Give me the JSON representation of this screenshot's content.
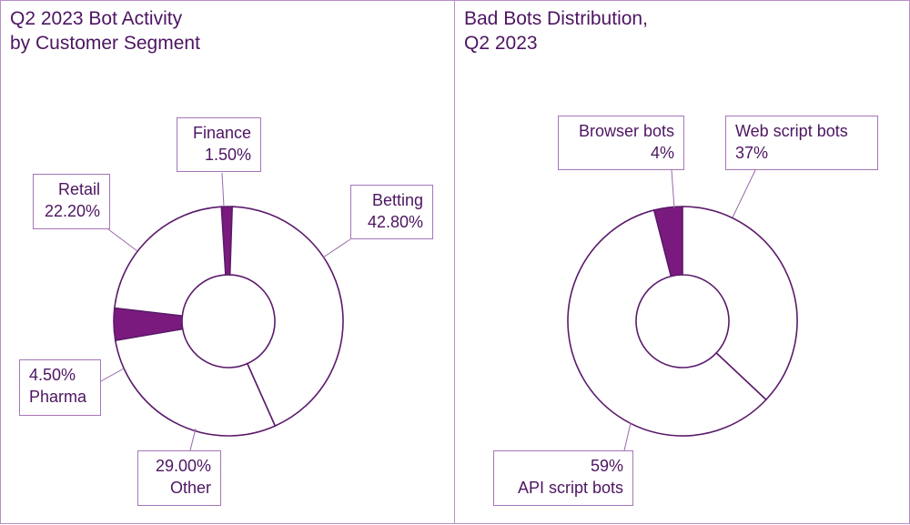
{
  "colors": {
    "accent": "#7b1a7e",
    "outline": "#5b1a6b",
    "text": "#4d1561",
    "border": "#b88fc7"
  },
  "charts": [
    {
      "title_line1": "Q2 2023 Bot Activity",
      "title_line2": "by Customer Segment",
      "labels": [
        {
          "name": "Finance",
          "value": "1.50%"
        },
        {
          "name": "Betting",
          "value": "42.80%"
        },
        {
          "name": "Retail",
          "value": "22.20%"
        },
        {
          "name": "Pharma",
          "value": "4.50%"
        },
        {
          "name": "Other",
          "value": "29.00%"
        }
      ]
    },
    {
      "title_line1": "Bad Bots Distribution,",
      "title_line2": "Q2  2023",
      "labels": [
        {
          "name": "Browser bots",
          "value": "4%"
        },
        {
          "name": "Web script bots",
          "value": "37%"
        },
        {
          "name": "API script bots",
          "value": "59%"
        }
      ]
    }
  ],
  "chart_data": [
    {
      "type": "pie",
      "title": "Q2 2023 Bot Activity by Customer Segment",
      "categories": [
        "Finance",
        "Betting",
        "Other",
        "Pharma",
        "Retail"
      ],
      "values": [
        1.5,
        42.8,
        29.0,
        4.5,
        22.2
      ],
      "highlighted": [
        "Finance",
        "Pharma"
      ],
      "donut": true
    },
    {
      "type": "pie",
      "title": "Bad Bots Distribution, Q2  2023",
      "categories": [
        "Browser bots",
        "Web script bots",
        "API script bots"
      ],
      "values": [
        4,
        37,
        59
      ],
      "highlighted": [
        "Browser bots"
      ],
      "donut": true
    }
  ]
}
